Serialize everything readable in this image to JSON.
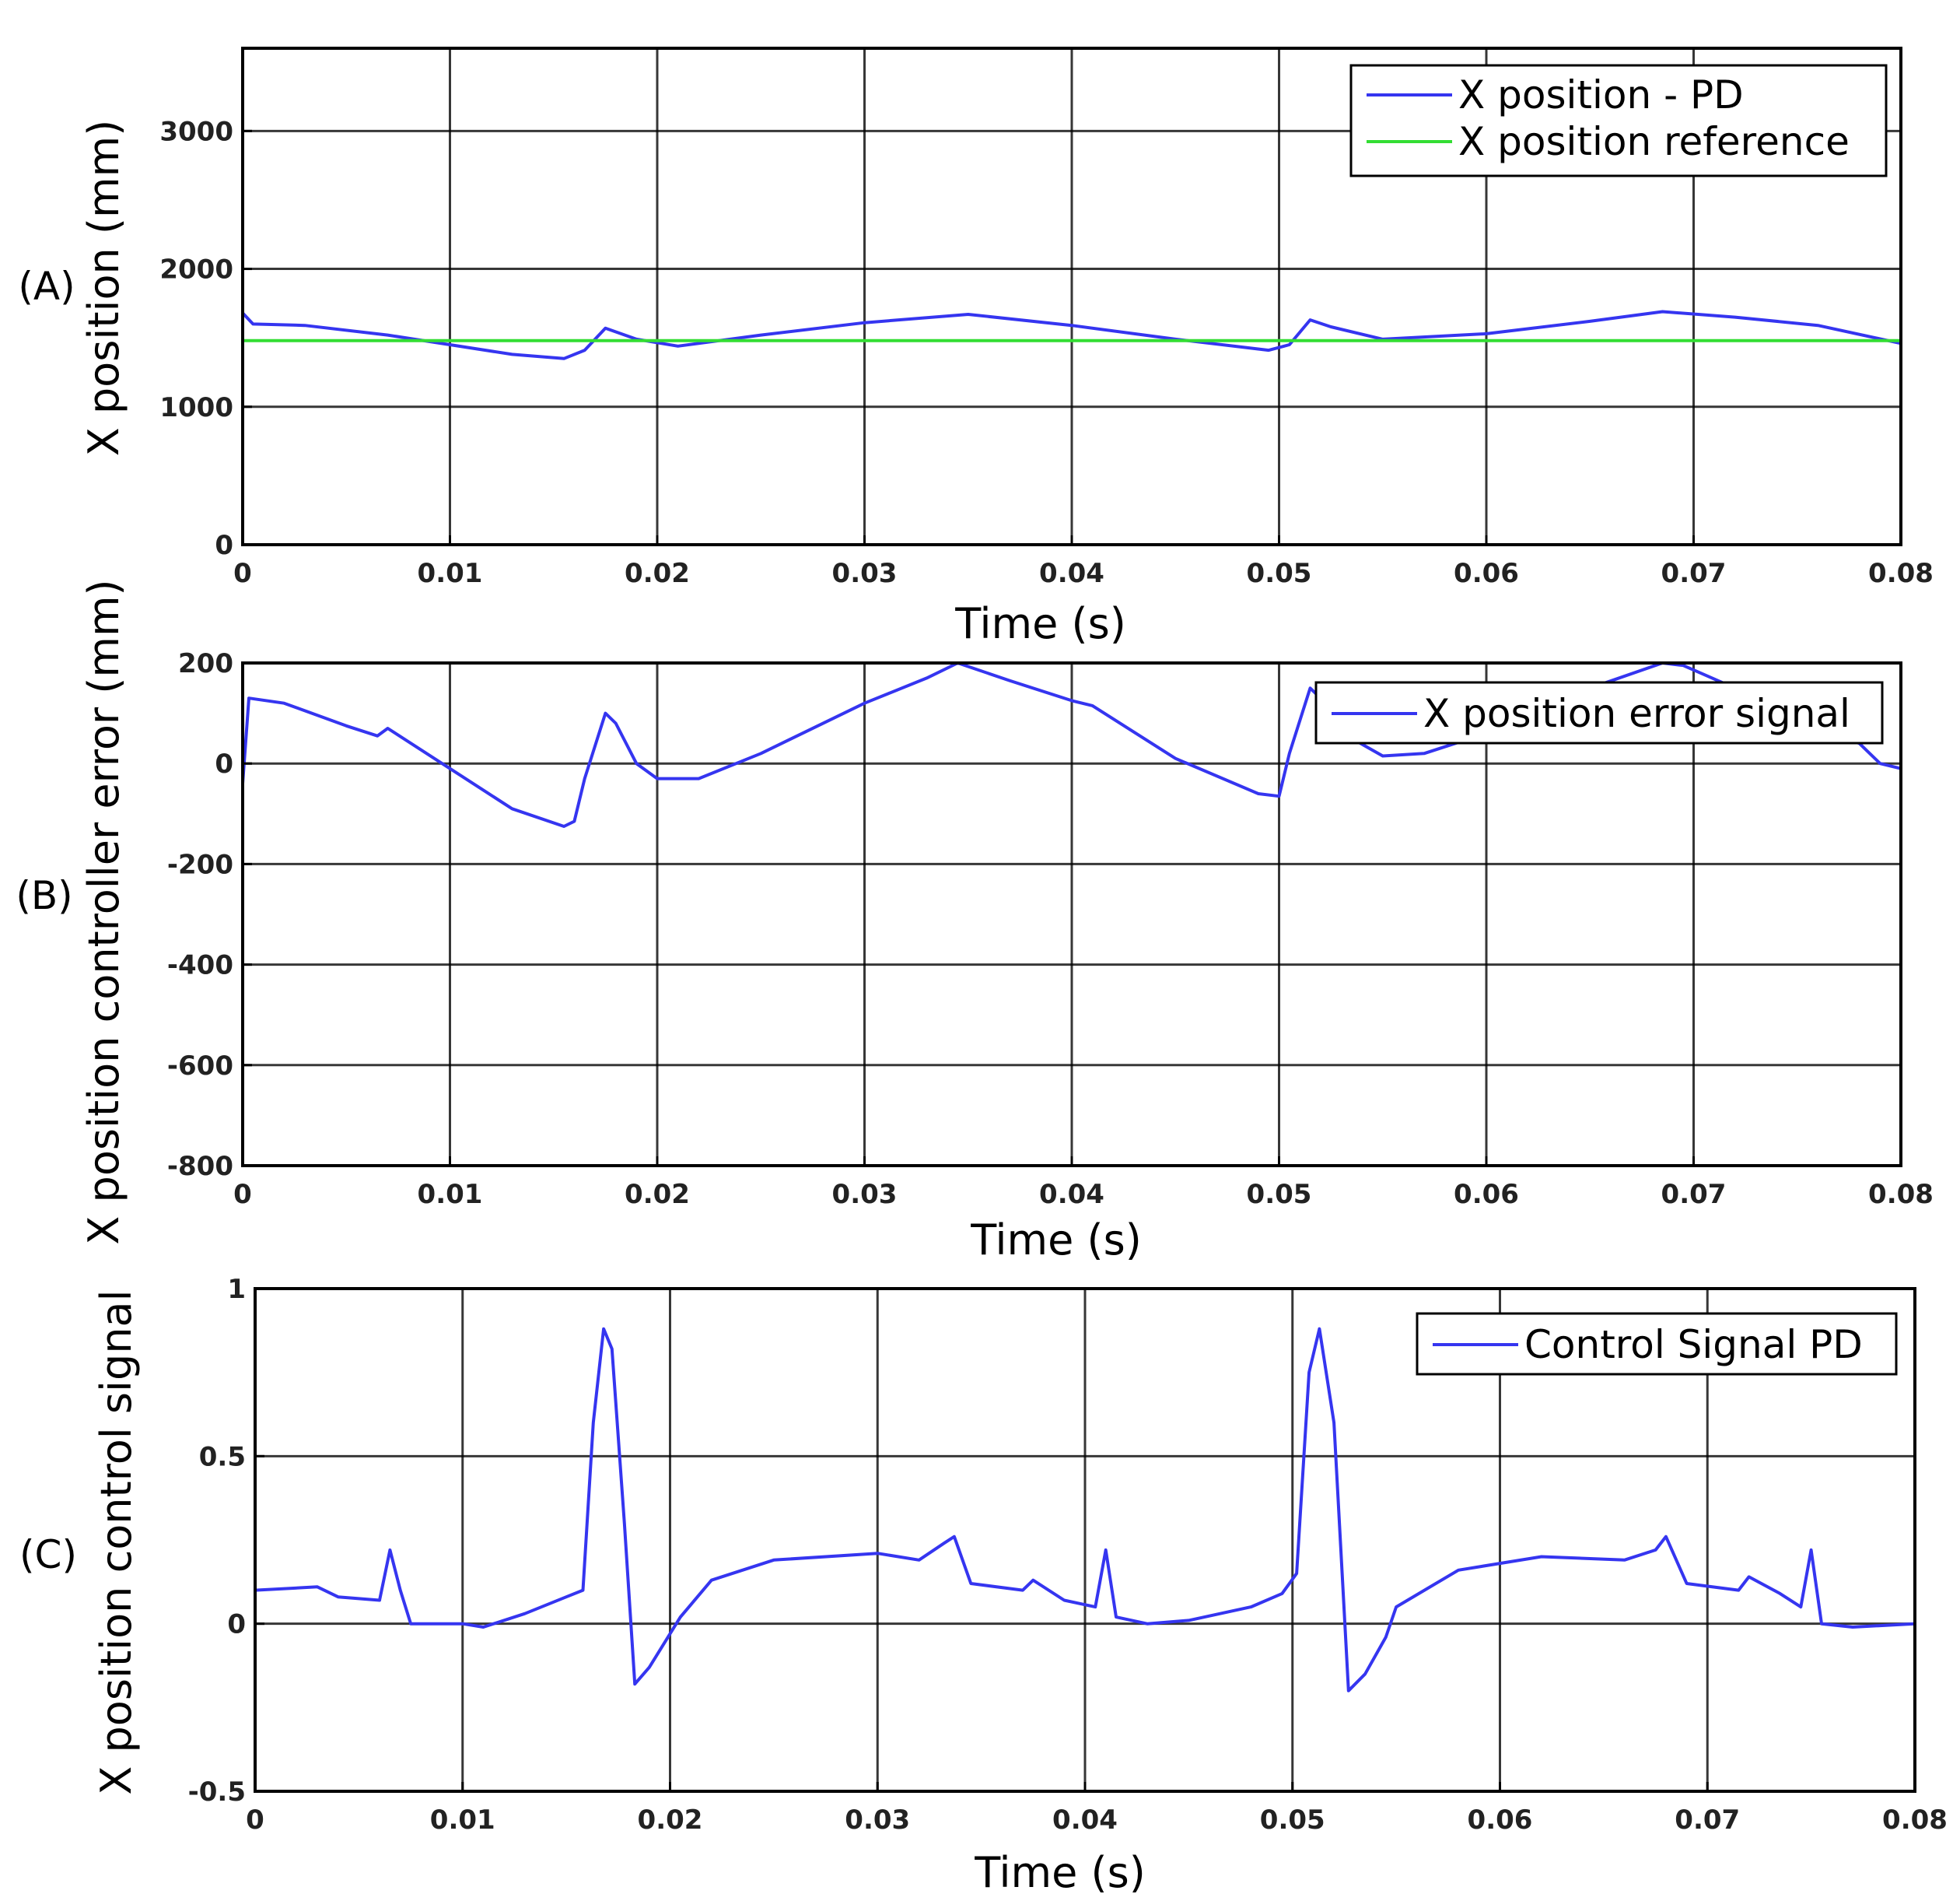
{
  "chart_data": [
    {
      "type": "line",
      "panel_label": "(A)",
      "xlabel": "Time (s)",
      "ylabel": "X position (mm)",
      "xlim": [
        0,
        0.08
      ],
      "ylim": [
        0,
        3600
      ],
      "x_ticks": [
        0,
        0.01,
        0.02,
        0.03,
        0.04,
        0.05,
        0.06,
        0.07,
        0.08
      ],
      "x_tick_labels": [
        "0",
        "0.01",
        "0.02",
        "0.03",
        "0.04",
        "0.05",
        "0.06",
        "0.07",
        "0.08"
      ],
      "y_ticks": [
        0,
        1000,
        2000,
        3000
      ],
      "y_tick_labels": [
        "0",
        "1000",
        "2000",
        "3000"
      ],
      "grid": true,
      "legend_position": "top-right",
      "series": [
        {
          "name": "X position - PD",
          "color": "#3535f0",
          "x": [
            0,
            0.0005,
            0.003,
            0.007,
            0.01,
            0.013,
            0.0155,
            0.0165,
            0.0175,
            0.019,
            0.021,
            0.025,
            0.03,
            0.035,
            0.04,
            0.045,
            0.0495,
            0.0505,
            0.0515,
            0.0525,
            0.055,
            0.06,
            0.065,
            0.0685,
            0.072,
            0.076,
            0.08
          ],
          "y": [
            1680,
            1600,
            1590,
            1520,
            1450,
            1380,
            1350,
            1410,
            1570,
            1490,
            1440,
            1520,
            1610,
            1670,
            1590,
            1490,
            1410,
            1450,
            1630,
            1580,
            1490,
            1530,
            1620,
            1690,
            1650,
            1590,
            1460
          ]
        },
        {
          "name": "X position reference",
          "color": "#33dd33",
          "x": [
            0,
            0.08
          ],
          "y": [
            1480,
            1480
          ]
        }
      ]
    },
    {
      "type": "line",
      "panel_label": "(B)",
      "xlabel": "Time (s)",
      "ylabel": "X position controller error (mm)",
      "xlim": [
        0,
        0.08
      ],
      "ylim": [
        -800,
        200
      ],
      "x_ticks": [
        0,
        0.01,
        0.02,
        0.03,
        0.04,
        0.05,
        0.06,
        0.07,
        0.08
      ],
      "x_tick_labels": [
        "0",
        "0.01",
        "0.02",
        "0.03",
        "0.04",
        "0.05",
        "0.06",
        "0.07",
        "0.08"
      ],
      "y_ticks": [
        -800,
        -600,
        -400,
        -200,
        0,
        200
      ],
      "y_tick_labels": [
        "-800",
        "-600",
        "-400",
        "-200",
        "0",
        "200"
      ],
      "grid": true,
      "legend_position": "top-right",
      "series": [
        {
          "name": "X position error signal",
          "color": "#3535f0",
          "x": [
            0,
            0.0003,
            0.002,
            0.005,
            0.0065,
            0.007,
            0.01,
            0.013,
            0.0155,
            0.016,
            0.0165,
            0.0175,
            0.018,
            0.019,
            0.02,
            0.022,
            0.025,
            0.03,
            0.033,
            0.0345,
            0.037,
            0.04,
            0.041,
            0.045,
            0.049,
            0.05,
            0.0505,
            0.0515,
            0.052,
            0.0535,
            0.055,
            0.057,
            0.06,
            0.065,
            0.0685,
            0.0695,
            0.072,
            0.0735,
            0.076,
            0.078,
            0.079,
            0.08
          ],
          "y": [
            -40,
            130,
            120,
            75,
            55,
            70,
            -10,
            -90,
            -125,
            -115,
            -30,
            100,
            80,
            0,
            -30,
            -30,
            20,
            120,
            170,
            200,
            165,
            125,
            115,
            10,
            -60,
            -65,
            20,
            150,
            130,
            50,
            15,
            20,
            60,
            150,
            200,
            195,
            150,
            120,
            70,
            40,
            0,
            -10
          ]
        }
      ]
    },
    {
      "type": "line",
      "panel_label": "(C)",
      "xlabel": "Time (s)",
      "ylabel": "X position control signal",
      "xlim": [
        0,
        0.08
      ],
      "ylim": [
        -0.5,
        1
      ],
      "x_ticks": [
        0,
        0.01,
        0.02,
        0.03,
        0.04,
        0.05,
        0.06,
        0.07,
        0.08
      ],
      "x_tick_labels": [
        "0",
        "0.01",
        "0.02",
        "0.03",
        "0.04",
        "0.05",
        "0.06",
        "0.07",
        "0.08"
      ],
      "y_ticks": [
        -0.5,
        0,
        0.5,
        1
      ],
      "y_tick_labels": [
        "-0.5",
        "0",
        "0.5",
        "1"
      ],
      "grid": true,
      "legend_position": "top-right",
      "series": [
        {
          "name": "Control Signal PD",
          "color": "#3535f0",
          "x": [
            0,
            0.003,
            0.004,
            0.006,
            0.0065,
            0.007,
            0.0075,
            0.01,
            0.011,
            0.013,
            0.015,
            0.0158,
            0.0163,
            0.0168,
            0.0172,
            0.0178,
            0.0183,
            0.019,
            0.0205,
            0.022,
            0.025,
            0.03,
            0.032,
            0.0332,
            0.0337,
            0.0345,
            0.037,
            0.0375,
            0.039,
            0.0405,
            0.041,
            0.0415,
            0.043,
            0.045,
            0.048,
            0.0495,
            0.0502,
            0.0508,
            0.0513,
            0.052,
            0.0527,
            0.0535,
            0.0545,
            0.055,
            0.058,
            0.062,
            0.066,
            0.0675,
            0.068,
            0.069,
            0.0715,
            0.072,
            0.0735,
            0.0745,
            0.075,
            0.0755,
            0.077,
            0.08
          ],
          "y": [
            0.1,
            0.11,
            0.08,
            0.07,
            0.22,
            0.1,
            0.0,
            0.0,
            -0.01,
            0.03,
            0.08,
            0.1,
            0.6,
            0.88,
            0.82,
            0.3,
            -0.18,
            -0.13,
            0.02,
            0.13,
            0.19,
            0.21,
            0.19,
            0.24,
            0.26,
            0.12,
            0.1,
            0.13,
            0.07,
            0.05,
            0.22,
            0.02,
            0.0,
            0.01,
            0.05,
            0.09,
            0.15,
            0.75,
            0.88,
            0.6,
            -0.2,
            -0.15,
            -0.04,
            0.05,
            0.16,
            0.2,
            0.19,
            0.22,
            0.26,
            0.12,
            0.1,
            0.14,
            0.09,
            0.05,
            0.22,
            0.0,
            -0.01,
            0.0
          ]
        }
      ]
    }
  ]
}
